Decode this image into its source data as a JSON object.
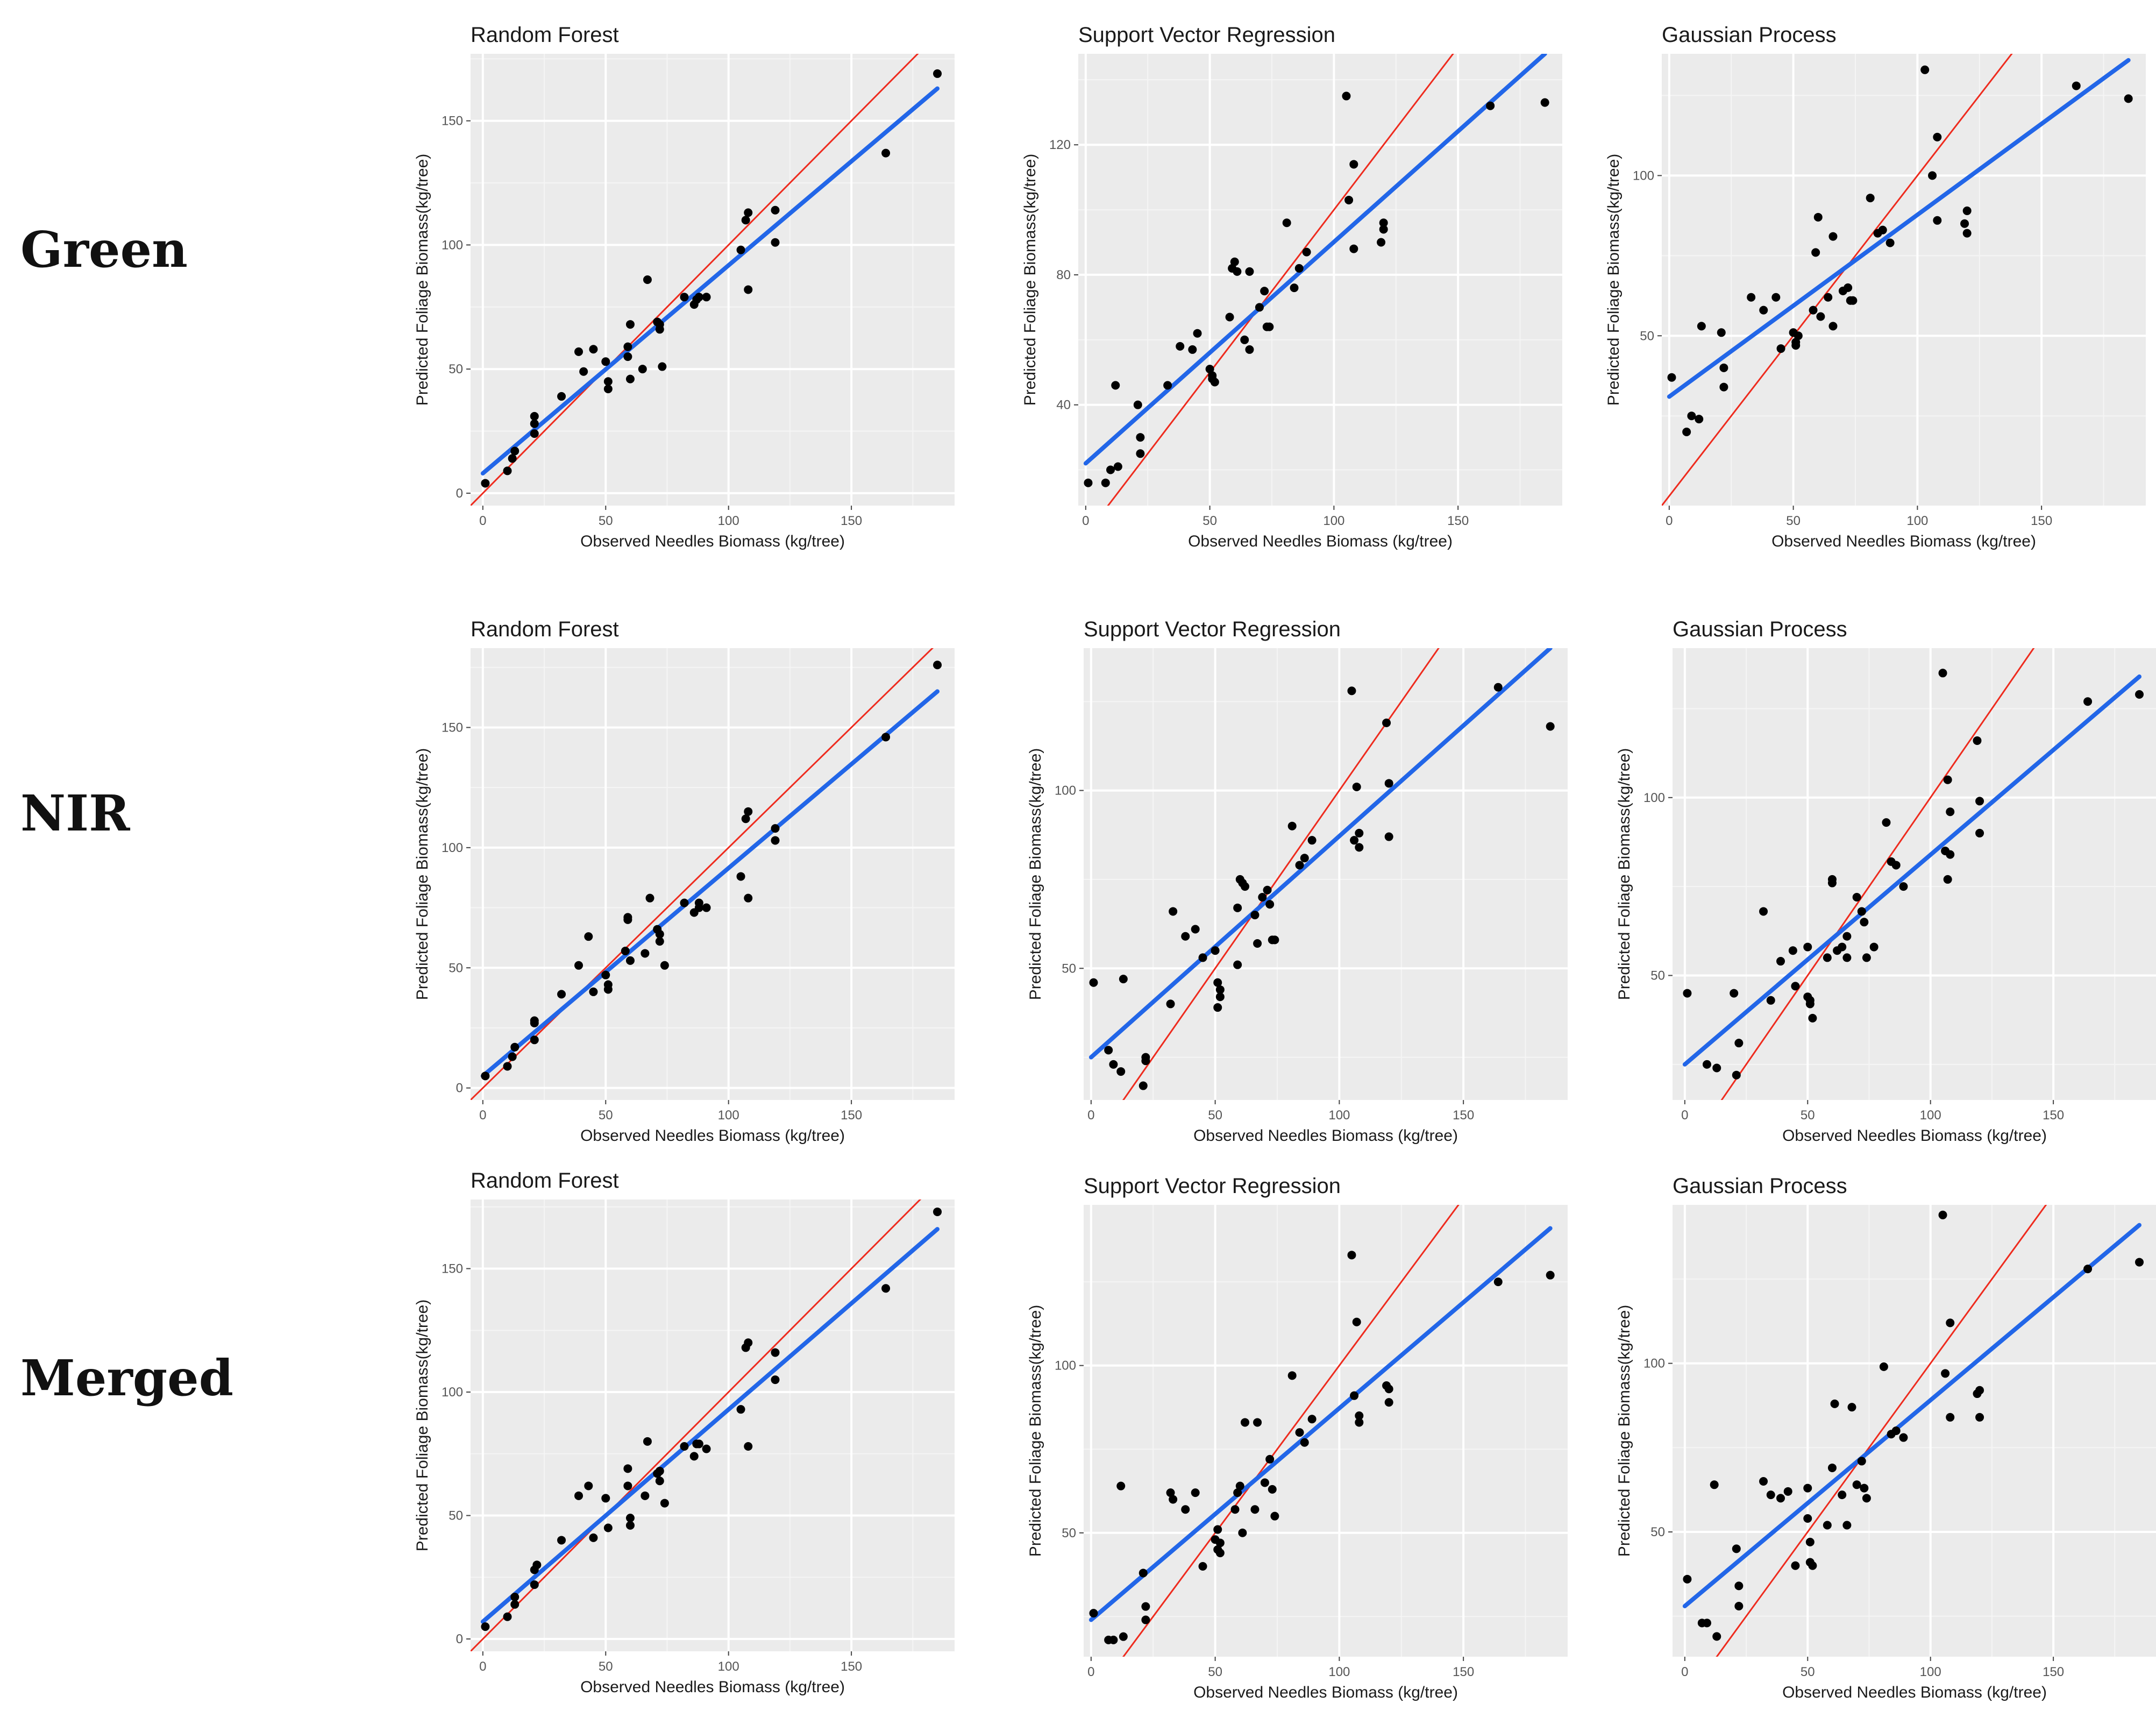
{
  "row_labels": [
    "Green",
    "NIR",
    "Merged"
  ],
  "chart_data": [
    {
      "type": "scatter",
      "row": "Green",
      "title": "Random Forest",
      "xlabel": "Observed Needles Biomass (kg/tree)",
      "ylabel": "Predicted Foliage Biomass(kg/tree)",
      "xlim": [
        -5,
        192
      ],
      "ylim": [
        -5,
        177
      ],
      "xticks": [
        0,
        50,
        100,
        150
      ],
      "yticks": [
        0,
        50,
        100,
        150
      ],
      "x": [
        1,
        10,
        12,
        13,
        21,
        21,
        21,
        32,
        39,
        41,
        45,
        50,
        51,
        51,
        59,
        59,
        60,
        60,
        65,
        67,
        71,
        72,
        72,
        73,
        82,
        86,
        87,
        88,
        91,
        105,
        107,
        108,
        108,
        119,
        119,
        164,
        185
      ],
      "y": [
        4,
        9,
        14,
        17,
        24,
        28,
        31,
        39,
        57,
        49,
        58,
        53,
        45,
        42,
        55,
        59,
        68,
        46,
        50,
        86,
        69,
        68,
        66,
        51,
        79,
        76,
        78,
        79,
        79,
        98,
        110,
        113,
        82,
        114,
        101,
        137,
        169
      ],
      "fit_line": [
        [
          0,
          8
        ],
        [
          185,
          163
        ]
      ],
      "identity_line": [
        [
          -5,
          -5
        ],
        [
          192,
          192
        ]
      ]
    },
    {
      "type": "scatter",
      "row": "Green",
      "title": "Support Vector Regression",
      "xlabel": "Observed Needles Biomass (kg/tree)",
      "ylabel": "Predicted Foliage Biomass(kg/tree)",
      "xlim": [
        -3,
        192
      ],
      "ylim": [
        9,
        148
      ],
      "xticks": [
        0,
        50,
        100,
        150
      ],
      "yticks": [
        40,
        80,
        120
      ],
      "x": [
        1,
        8,
        10,
        12,
        13,
        21,
        22,
        22,
        33,
        38,
        43,
        45,
        50,
        51,
        51,
        52,
        58,
        59,
        60,
        61,
        64,
        66,
        66,
        70,
        72,
        73,
        74,
        81,
        84,
        86,
        89,
        105,
        106,
        108,
        108,
        120,
        120,
        119,
        163,
        185
      ],
      "y": [
        16,
        16,
        20,
        46,
        21,
        40,
        30,
        25,
        46,
        58,
        57,
        62,
        51,
        48,
        49,
        47,
        67,
        82,
        84,
        81,
        60,
        81,
        57,
        70,
        75,
        64,
        64,
        96,
        76,
        82,
        87,
        135,
        103,
        114,
        88,
        96,
        94,
        90,
        132,
        133
      ],
      "fit_line": [
        [
          0,
          22
        ],
        [
          185,
          148
        ]
      ],
      "identity_line": [
        [
          -3,
          -3
        ],
        [
          192,
          192
        ]
      ]
    },
    {
      "type": "scatter",
      "row": "Green",
      "title": "Gaussian Process",
      "xlabel": "Observed Needles Biomass (kg/tree)",
      "ylabel": "Predicted Foliage Biomass(kg/tree)",
      "xlim": [
        -3,
        192
      ],
      "ylim": [
        -3,
        138
      ],
      "xticks": [
        0,
        50,
        100,
        150
      ],
      "yticks": [
        50,
        100
      ],
      "x": [
        1,
        7,
        9,
        12,
        13,
        21,
        22,
        22,
        33,
        38,
        43,
        45,
        50,
        51,
        51,
        52,
        58,
        59,
        60,
        61,
        64,
        66,
        66,
        70,
        72,
        73,
        74,
        81,
        84,
        86,
        89,
        103,
        106,
        108,
        108,
        120,
        120,
        119,
        164,
        185
      ],
      "y": [
        37,
        20,
        25,
        24,
        53,
        51,
        40,
        34,
        62,
        58,
        62,
        46,
        51,
        47,
        48,
        50,
        58,
        76,
        87,
        56,
        62,
        53,
        81,
        64,
        65,
        61,
        61,
        93,
        82,
        83,
        79,
        133,
        100,
        112,
        86,
        89,
        82,
        85,
        128,
        124
      ],
      "fit_line": [
        [
          0,
          31
        ],
        [
          185,
          136
        ]
      ],
      "identity_line": [
        [
          -3,
          -3
        ],
        [
          192,
          192
        ]
      ]
    },
    {
      "type": "scatter",
      "row": "NIR",
      "title": "Random Forest",
      "xlabel": "Observed Needles Biomass (kg/tree)",
      "ylabel": "Predicted Foliage Biomass(kg/tree)",
      "xlim": [
        -5,
        192
      ],
      "ylim": [
        -5,
        183
      ],
      "xticks": [
        0,
        50,
        100,
        150
      ],
      "yticks": [
        0,
        50,
        100,
        150
      ],
      "x": [
        1,
        10,
        12,
        13,
        21,
        21,
        21,
        32,
        39,
        43,
        45,
        50,
        51,
        51,
        58,
        59,
        59,
        60,
        66,
        68,
        71,
        72,
        72,
        74,
        82,
        86,
        88,
        88,
        91,
        105,
        107,
        108,
        108,
        119,
        119,
        164,
        185
      ],
      "y": [
        5,
        9,
        13,
        17,
        20,
        27,
        28,
        39,
        51,
        63,
        40,
        47,
        43,
        41,
        57,
        71,
        70,
        53,
        56,
        79,
        66,
        64,
        61,
        51,
        77,
        73,
        77,
        75,
        75,
        88,
        112,
        115,
        79,
        108,
        103,
        146,
        176
      ],
      "fit_line": [
        [
          0,
          5
        ],
        [
          185,
          165
        ]
      ],
      "identity_line": [
        [
          -5,
          -5
        ],
        [
          192,
          192
        ]
      ]
    },
    {
      "type": "scatter",
      "row": "NIR",
      "title": "Support Vector Regression",
      "xlabel": "Observed Needles Biomass (kg/tree)",
      "ylabel": "Predicted Foliage Biomass(kg/tree)",
      "xlim": [
        -3,
        192
      ],
      "ylim": [
        13,
        140
      ],
      "xticks": [
        0,
        50,
        100,
        150
      ],
      "yticks": [
        50,
        100
      ],
      "x": [
        1,
        7,
        9,
        12,
        13,
        21,
        22,
        22,
        32,
        33,
        38,
        42,
        45,
        50,
        51,
        51,
        52,
        52,
        59,
        59,
        60,
        61,
        62,
        66,
        67,
        69,
        71,
        72,
        73,
        74,
        81,
        84,
        86,
        89,
        105,
        106,
        107,
        108,
        108,
        119,
        120,
        120,
        164,
        185
      ],
      "y": [
        46,
        27,
        23,
        21,
        47,
        17,
        24,
        25,
        40,
        66,
        59,
        61,
        53,
        55,
        46,
        39,
        44,
        42,
        67,
        51,
        75,
        74,
        73,
        65,
        57,
        70,
        72,
        68,
        58,
        58,
        90,
        79,
        81,
        86,
        128,
        86,
        101,
        88,
        84,
        119,
        102,
        87,
        129,
        118
      ],
      "fit_line": [
        [
          0,
          25
        ],
        [
          185,
          140
        ]
      ],
      "identity_line": [
        [
          -3,
          -3
        ],
        [
          192,
          192
        ]
      ]
    },
    {
      "type": "scatter",
      "row": "NIR",
      "title": "Gaussian Process",
      "xlabel": "Observed Needles Biomass (kg/tree)",
      "ylabel": "Predicted Foliage Biomass(kg/tree)",
      "xlim": [
        -5,
        192
      ],
      "ylim": [
        15,
        142
      ],
      "xticks": [
        0,
        50,
        100,
        150
      ],
      "yticks": [
        50,
        100
      ],
      "x": [
        1,
        9,
        13,
        20,
        21,
        22,
        32,
        35,
        39,
        44,
        45,
        50,
        50,
        51,
        51,
        52,
        58,
        60,
        60,
        62,
        64,
        66,
        66,
        70,
        72,
        73,
        74,
        77,
        82,
        84,
        86,
        89,
        105,
        106,
        107,
        107,
        108,
        108,
        119,
        120,
        120,
        164,
        185
      ],
      "y": [
        45,
        25,
        24,
        45,
        22,
        31,
        68,
        43,
        54,
        57,
        47,
        58,
        44,
        43,
        42,
        38,
        55,
        77,
        76,
        57,
        58,
        61,
        55,
        72,
        68,
        65,
        55,
        58,
        93,
        82,
        81,
        75,
        135,
        85,
        105,
        77,
        96,
        84,
        116,
        99,
        90,
        127,
        129
      ],
      "fit_line": [
        [
          0,
          25
        ],
        [
          185,
          134
        ]
      ],
      "identity_line": [
        [
          -5,
          -5
        ],
        [
          192,
          192
        ]
      ]
    },
    {
      "type": "scatter",
      "row": "Merged",
      "title": "Random Forest",
      "xlabel": "Observed Needles Biomass (kg/tree)",
      "ylabel": "Predicted Foliage Biomass(kg/tree)",
      "xlim": [
        -5,
        192
      ],
      "ylim": [
        -5,
        178
      ],
      "xticks": [
        0,
        50,
        100,
        150
      ],
      "yticks": [
        0,
        50,
        100,
        150
      ],
      "x": [
        1,
        10,
        13,
        13,
        21,
        21,
        22,
        32,
        39,
        43,
        45,
        50,
        51,
        59,
        59,
        60,
        60,
        66,
        67,
        71,
        72,
        72,
        74,
        82,
        86,
        87,
        88,
        91,
        105,
        107,
        108,
        108,
        119,
        119,
        164,
        185
      ],
      "y": [
        5,
        9,
        14,
        17,
        22,
        28,
        30,
        40,
        58,
        62,
        41,
        57,
        45,
        62,
        69,
        49,
        46,
        58,
        80,
        67,
        68,
        64,
        55,
        78,
        74,
        79,
        79,
        77,
        93,
        118,
        120,
        78,
        116,
        105,
        142,
        173
      ],
      "fit_line": [
        [
          0,
          7
        ],
        [
          185,
          166
        ]
      ],
      "identity_line": [
        [
          -5,
          -5
        ],
        [
          192,
          192
        ]
      ]
    },
    {
      "type": "scatter",
      "row": "Merged",
      "title": "Support Vector Regression",
      "xlabel": "Observed Needles Biomass (kg/tree)",
      "ylabel": "Predicted Foliage Biomass(kg/tree)",
      "xlim": [
        -3,
        192
      ],
      "ylim": [
        13,
        148
      ],
      "xticks": [
        0,
        50,
        100,
        150
      ],
      "yticks": [
        50,
        100
      ],
      "x": [
        1,
        7,
        9,
        12,
        13,
        21,
        22,
        22,
        32,
        33,
        38,
        42,
        45,
        50,
        51,
        51,
        52,
        52,
        58,
        59,
        60,
        61,
        62,
        66,
        67,
        70,
        72,
        73,
        74,
        81,
        84,
        86,
        89,
        105,
        106,
        107,
        108,
        108,
        119,
        120,
        120,
        164,
        185
      ],
      "y": [
        26,
        18,
        18,
        64,
        19,
        38,
        24,
        28,
        62,
        60,
        57,
        62,
        40,
        48,
        51,
        45,
        47,
        44,
        57,
        62,
        64,
        50,
        83,
        57,
        83,
        65,
        72,
        63,
        55,
        97,
        80,
        77,
        84,
        133,
        91,
        113,
        85,
        83,
        94,
        93,
        89,
        125,
        127
      ],
      "fit_line": [
        [
          0,
          24
        ],
        [
          185,
          141
        ]
      ],
      "identity_line": [
        [
          -3,
          -3
        ],
        [
          192,
          192
        ]
      ]
    },
    {
      "type": "scatter",
      "row": "Merged",
      "title": "Gaussian Process",
      "xlabel": "Observed Needles Biomass (kg/tree)",
      "ylabel": "Predicted Foliage Biomass(kg/tree)",
      "xlim": [
        -5,
        192
      ],
      "ylim": [
        13,
        147
      ],
      "xticks": [
        0,
        50,
        100,
        150
      ],
      "yticks": [
        50,
        100
      ],
      "x": [
        1,
        7,
        9,
        12,
        13,
        21,
        22,
        22,
        32,
        35,
        39,
        42,
        45,
        50,
        50,
        51,
        51,
        52,
        58,
        60,
        61,
        64,
        66,
        68,
        70,
        72,
        73,
        74,
        81,
        84,
        86,
        89,
        105,
        106,
        108,
        108,
        119,
        120,
        120,
        164,
        185
      ],
      "y": [
        36,
        23,
        23,
        64,
        19,
        45,
        28,
        34,
        65,
        61,
        60,
        62,
        40,
        63,
        54,
        47,
        41,
        40,
        52,
        69,
        88,
        61,
        52,
        87,
        64,
        71,
        63,
        60,
        99,
        79,
        80,
        78,
        144,
        97,
        112,
        84,
        91,
        84,
        92,
        128,
        130
      ],
      "fit_line": [
        [
          0,
          28
        ],
        [
          185,
          141
        ]
      ],
      "identity_line": [
        [
          -5,
          -5
        ],
        [
          192,
          192
        ]
      ]
    }
  ]
}
